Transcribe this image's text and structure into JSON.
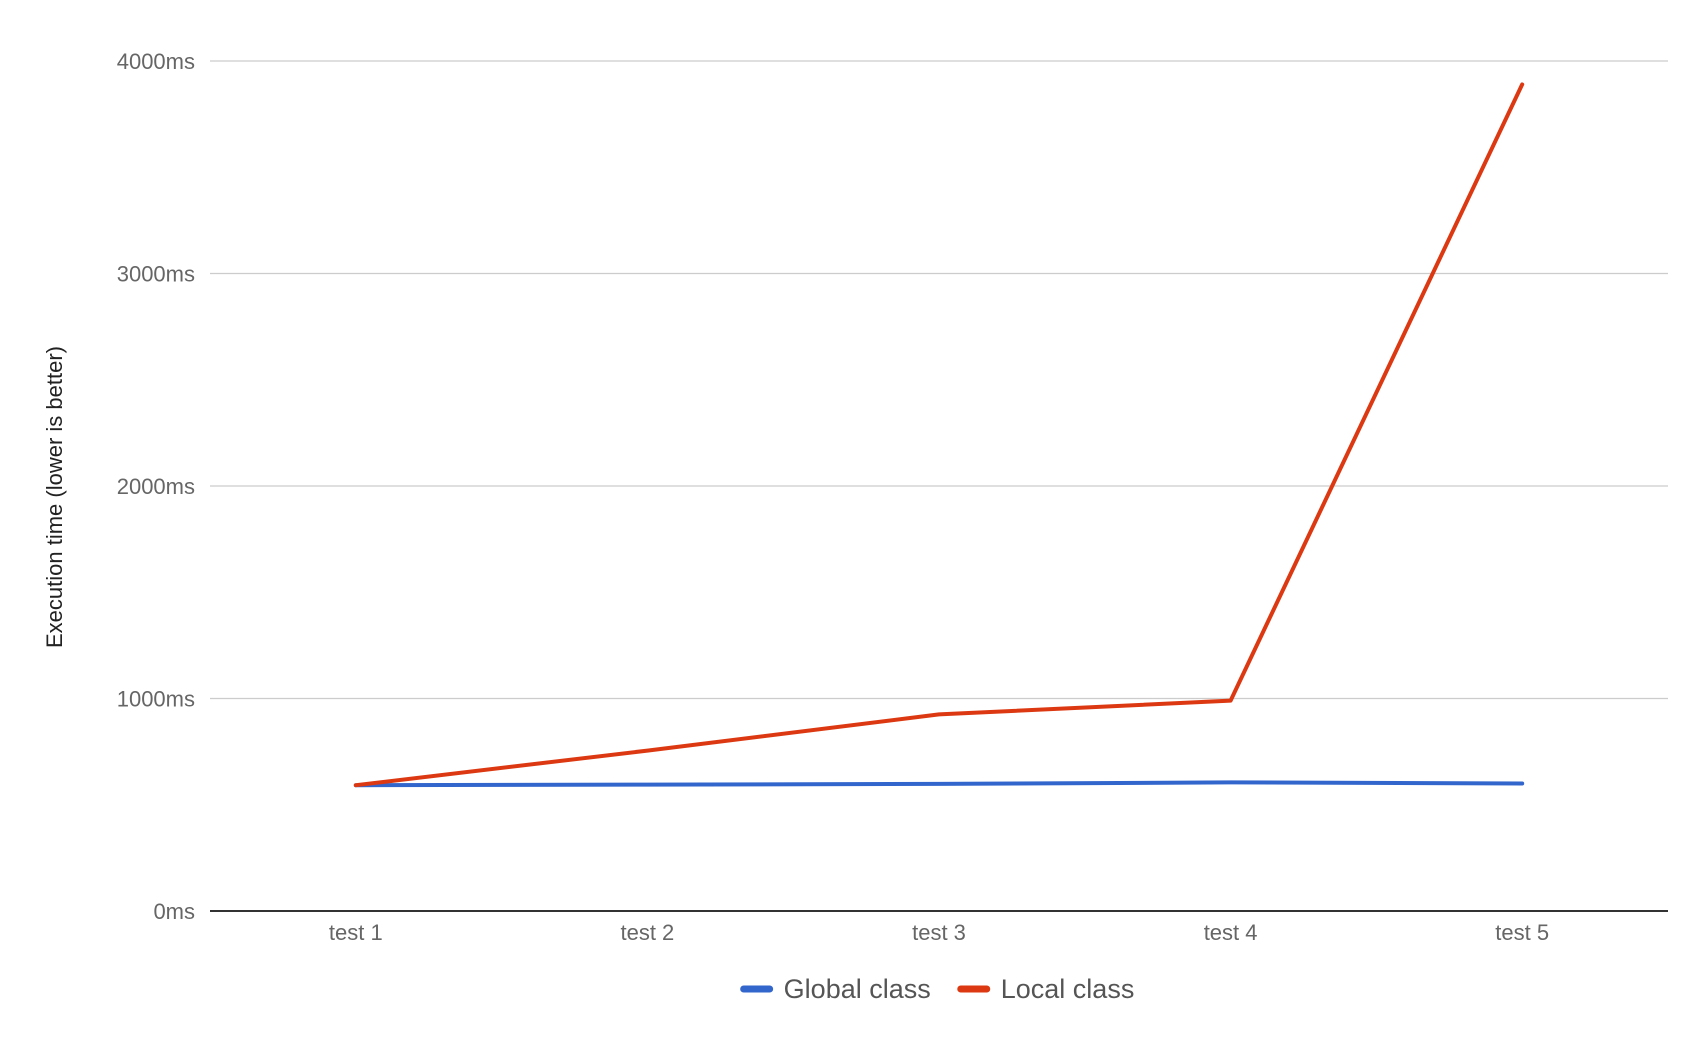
{
  "chart_data": {
    "type": "line",
    "categories": [
      "test 1",
      "test 2",
      "test 3",
      "test 4",
      "test 5"
    ],
    "ylabel": "Execution time (lower is better)",
    "ylim": [
      0,
      4000
    ],
    "yticks": [
      0,
      1000,
      2000,
      3000,
      4000
    ],
    "ytick_labels": [
      "0ms",
      "1000ms",
      "2000ms",
      "3000ms",
      "4000ms"
    ],
    "grid": true,
    "legend_position": "bottom",
    "series": [
      {
        "name": "Global class",
        "color": "#3366cc",
        "values": [
          592,
          595,
          598,
          605,
          600
        ]
      },
      {
        "name": "Local class",
        "color": "#dc3912",
        "values": [
          592,
          755,
          925,
          990,
          3890
        ]
      }
    ]
  }
}
